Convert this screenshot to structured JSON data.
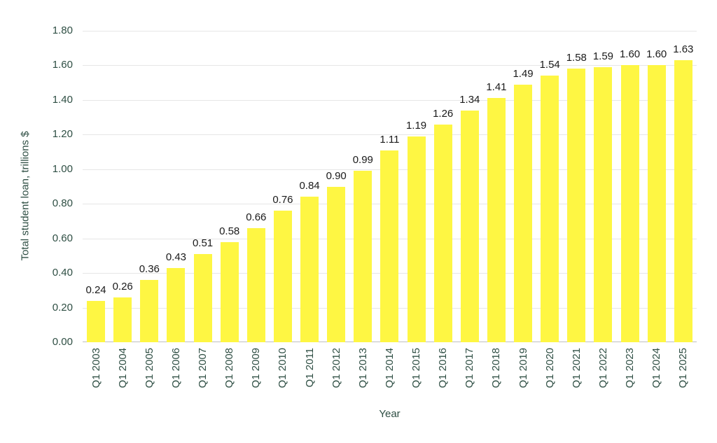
{
  "chart_data": {
    "type": "bar",
    "title": "",
    "xlabel": "Year",
    "ylabel": "Total student loan, trillions $",
    "categories": [
      "Q1 2003",
      "Q1 2004",
      "Q1 2005",
      "Q1 2006",
      "Q1 2007",
      "Q1 2008",
      "Q1 2009",
      "Q1 2010",
      "Q1 2011",
      "Q1 2012",
      "Q1 2013",
      "Q1 2014",
      "Q1 2015",
      "Q1 2016",
      "Q1 2017",
      "Q1 2018",
      "Q1 2019",
      "Q1 2020",
      "Q1 2021",
      "Q1 2022",
      "Q1 2023",
      "Q1 2024",
      "Q1 2025"
    ],
    "values": [
      0.24,
      0.26,
      0.36,
      0.43,
      0.51,
      0.58,
      0.66,
      0.76,
      0.84,
      0.9,
      0.99,
      1.11,
      1.19,
      1.26,
      1.34,
      1.41,
      1.49,
      1.54,
      1.58,
      1.59,
      1.6,
      1.6,
      1.63
    ],
    "value_labels": [
      "0.24",
      "0.26",
      "0.36",
      "0.43",
      "0.51",
      "0.58",
      "0.66",
      "0.76",
      "0.84",
      "0.90",
      "0.99",
      "1.11",
      "1.19",
      "1.26",
      "1.34",
      "1.41",
      "1.49",
      "1.54",
      "1.58",
      "1.59",
      "1.60",
      "1.60",
      "1.63"
    ],
    "ylim": [
      0,
      1.8
    ],
    "ytick_step": 0.2,
    "yticks": [
      "0.00",
      "0.20",
      "0.40",
      "0.60",
      "0.80",
      "1.00",
      "1.20",
      "1.40",
      "1.60",
      "1.80"
    ],
    "grid": true,
    "legend": "none",
    "bar_color": "#fef643",
    "axis_text_color": "#2f4f44",
    "label_text_color": "#1a1a1a",
    "grid_color": "#e6e6e6",
    "baseline_color": "#bfbfbf",
    "background": "#ffffff"
  }
}
